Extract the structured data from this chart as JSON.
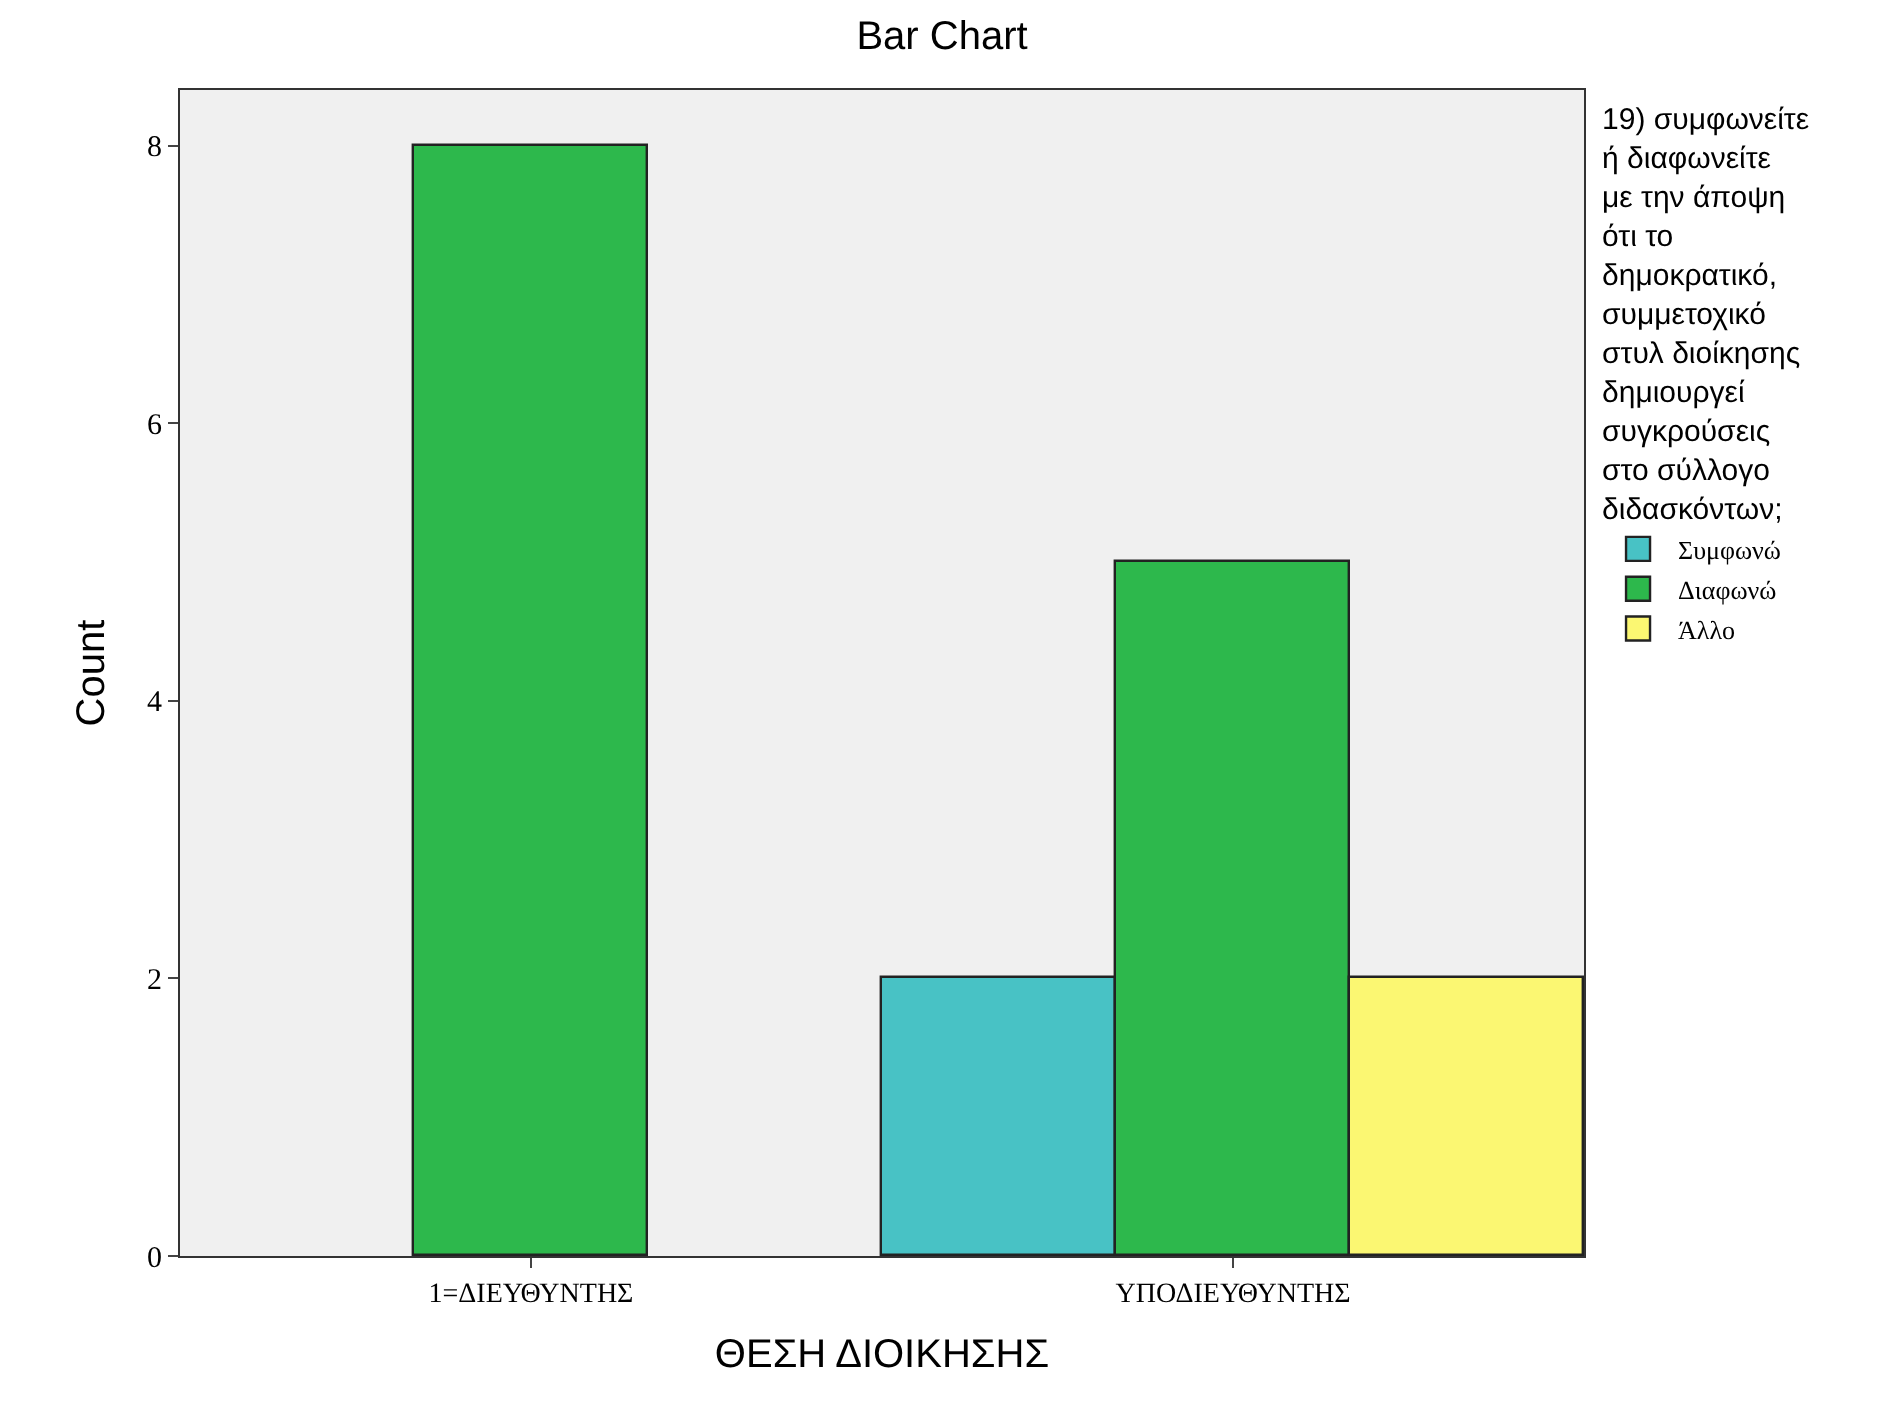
{
  "chart_data": {
    "type": "bar",
    "title": "Bar Chart",
    "xlabel": "ΘΕΣΗ ΔΙΟΙΚΗΣΗΣ",
    "ylabel": "Count",
    "legend_title": "19) συμφωνείτε ή διαφωνείτε με την άποψη ότι το δημοκρατικό, συμμετοχικό στυλ διοίκησης δημιουργεί συγκρούσεις στο σύλλογο διδασκόντων;",
    "categories": [
      "1=ΔΙΕΥΘΥΝΤΗΣ",
      "ΥΠΟΔΙΕΥΘΥΝΤΗΣ"
    ],
    "series": [
      {
        "name": "Συμφωνώ",
        "color": "#48c2c5",
        "values": [
          null,
          2
        ]
      },
      {
        "name": "Διαφωνώ",
        "color": "#2db84c",
        "values": [
          8,
          5
        ]
      },
      {
        "name": "Άλλο",
        "color": "#fbf772",
        "values": [
          null,
          2
        ]
      }
    ],
    "ylim": [
      0,
      8.4
    ],
    "yticks": [
      0,
      2,
      4,
      6,
      8
    ],
    "grid": false,
    "legend": "right"
  }
}
